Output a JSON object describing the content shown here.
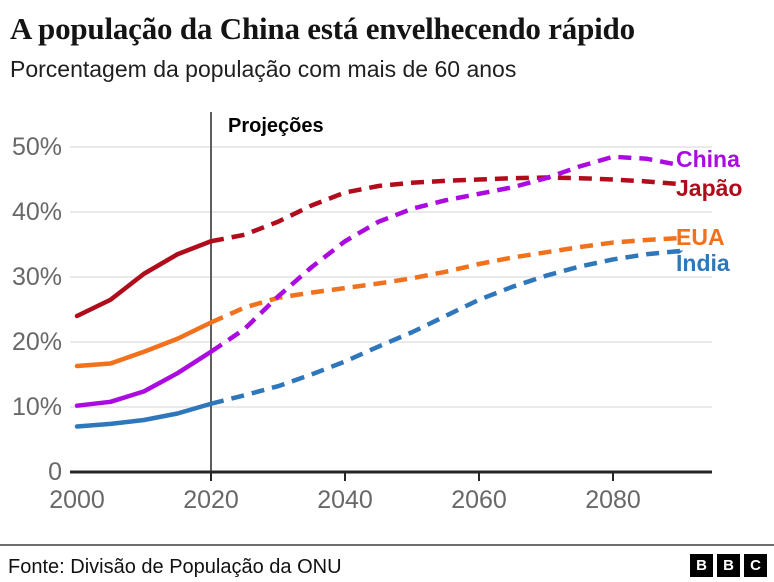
{
  "chart_data": {
    "type": "line",
    "title": "A população da China está envelhecendo rápido",
    "subtitle": "Porcentagem da população com mais de 60 anos",
    "annotation": "Projeções",
    "projection_from_year": 2020,
    "x_years": [
      2000,
      2005,
      2010,
      2015,
      2020,
      2025,
      2030,
      2035,
      2040,
      2045,
      2050,
      2055,
      2060,
      2065,
      2070,
      2075,
      2080,
      2085,
      2090
    ],
    "xlim": [
      2000,
      2095
    ],
    "ylim": [
      0,
      52
    ],
    "grid": true,
    "legend_position": "right-inline",
    "unit": "%",
    "series": [
      {
        "name": "Índia",
        "color": "#2f77bb",
        "values": [
          7.0,
          7.4,
          8.0,
          9.0,
          10.5,
          11.8,
          13.2,
          15.0,
          17.0,
          19.3,
          21.5,
          24.0,
          26.5,
          28.5,
          30.2,
          31.6,
          32.7,
          33.5,
          34.0
        ]
      },
      {
        "name": "EUA",
        "color": "#f2711d",
        "values": [
          16.3,
          16.7,
          18.5,
          20.5,
          23.0,
          25.3,
          26.8,
          27.6,
          28.3,
          29.0,
          29.8,
          30.8,
          32.0,
          33.0,
          33.8,
          34.6,
          35.3,
          35.7,
          36.0
        ]
      },
      {
        "name": "Japão",
        "color": "#b00c1c",
        "values": [
          24.0,
          26.5,
          30.5,
          33.5,
          35.5,
          36.5,
          38.5,
          41.0,
          43.0,
          44.0,
          44.5,
          44.8,
          45.0,
          45.2,
          45.3,
          45.2,
          45.0,
          44.7,
          44.3
        ]
      },
      {
        "name": "China",
        "color": "#ab0be0",
        "values": [
          10.2,
          10.8,
          12.4,
          15.2,
          18.5,
          22.0,
          27.0,
          31.5,
          35.5,
          38.5,
          40.5,
          41.8,
          42.8,
          43.8,
          45.2,
          47.0,
          48.5,
          48.2,
          47.2
        ]
      }
    ],
    "y_ticks": [
      {
        "value": 50,
        "label": "50%"
      },
      {
        "value": 40,
        "label": "40%"
      },
      {
        "value": 30,
        "label": "30%"
      },
      {
        "value": 20,
        "label": "20%"
      },
      {
        "value": 10,
        "label": "10%"
      },
      {
        "value": 0,
        "label": "0"
      }
    ],
    "x_ticks": [
      {
        "value": 2000,
        "label": "2000"
      },
      {
        "value": 2020,
        "label": "2020"
      },
      {
        "value": 2040,
        "label": "2040"
      },
      {
        "value": 2060,
        "label": "2060"
      },
      {
        "value": 2080,
        "label": "2080"
      }
    ]
  },
  "footer": {
    "source": "Fonte: Divisão de População da ONU",
    "logo_letters": [
      "B",
      "B",
      "C"
    ]
  }
}
